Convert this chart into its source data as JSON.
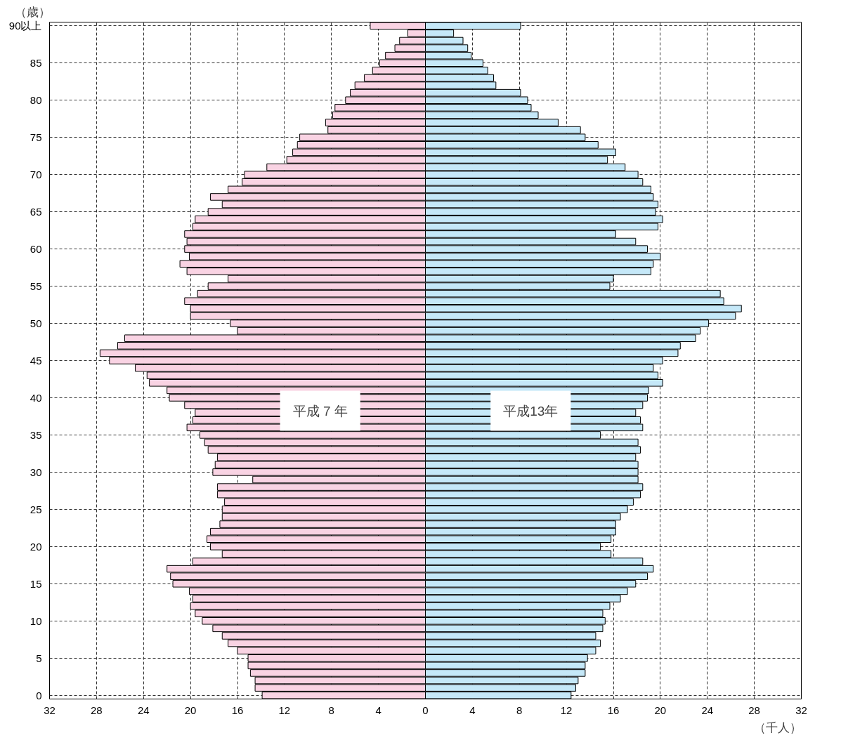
{
  "chart_data": {
    "type": "bar",
    "orientation": "horizontal",
    "ylabel": "（歳）",
    "xlabel": "（千人）",
    "categories": [
      "90以上",
      null,
      null,
      null,
      null,
      "85",
      null,
      null,
      null,
      null,
      "80",
      null,
      null,
      null,
      null,
      "75",
      null,
      null,
      null,
      null,
      "70",
      null,
      null,
      null,
      null,
      "65",
      null,
      null,
      null,
      null,
      "60",
      null,
      null,
      null,
      null,
      "55",
      null,
      null,
      null,
      null,
      "50",
      null,
      null,
      null,
      null,
      "45",
      null,
      null,
      null,
      null,
      "40",
      null,
      null,
      null,
      null,
      "35",
      null,
      null,
      null,
      null,
      "30",
      null,
      null,
      null,
      null,
      "25",
      null,
      null,
      null,
      null,
      "20",
      null,
      null,
      null,
      null,
      "15",
      null,
      null,
      null,
      null,
      "10",
      null,
      null,
      null,
      null,
      "5",
      null,
      null,
      null,
      null,
      "0"
    ],
    "series": [
      {
        "name": "平成 7 年",
        "color": "#f9d3e3",
        "values": [
          -4.7,
          -1.5,
          -2.2,
          -2.6,
          -3.4,
          -3.9,
          -4.5,
          -5.2,
          -6.0,
          -6.4,
          -6.8,
          -7.7,
          -7.9,
          -8.5,
          -8.3,
          -10.7,
          -10.9,
          -11.3,
          -11.8,
          -13.5,
          -15.4,
          -15.6,
          -16.8,
          -18.3,
          -17.3,
          -18.5,
          -19.6,
          -19.8,
          -20.5,
          -20.3,
          -20.5,
          -20.1,
          -20.9,
          -20.3,
          -16.8,
          -18.5,
          -19.4,
          -20.5,
          -20.0,
          -20.0,
          -16.6,
          -16.0,
          -25.6,
          -26.2,
          -27.7,
          -26.9,
          -24.7,
          -23.7,
          -23.5,
          -22.0,
          -21.8,
          -20.5,
          -19.6,
          -19.8,
          -20.3,
          -19.2,
          -18.8,
          -18.5,
          -17.7,
          -17.9,
          -18.1,
          -14.7,
          -17.7,
          -17.7,
          -17.1,
          -17.3,
          -17.3,
          -17.5,
          -18.3,
          -18.6,
          -18.3,
          -17.3,
          -19.8,
          -22.0,
          -21.7,
          -21.5,
          -20.1,
          -19.8,
          -20.0,
          -19.6,
          -19.0,
          -18.1,
          -17.3,
          -16.8,
          -16.0,
          -15.1,
          -15.1,
          -14.9,
          -14.5,
          -14.5,
          -13.9
        ]
      },
      {
        "name": "平成13年",
        "color": "#c5e8f8",
        "values": [
          8.1,
          2.4,
          3.2,
          3.6,
          3.9,
          4.9,
          5.3,
          5.8,
          6.0,
          8.1,
          8.7,
          9.0,
          9.6,
          11.3,
          13.2,
          13.6,
          14.7,
          16.2,
          15.5,
          17.0,
          18.1,
          18.5,
          19.2,
          19.4,
          19.8,
          19.6,
          20.2,
          19.8,
          16.2,
          17.9,
          18.9,
          20.0,
          19.4,
          19.2,
          16.0,
          15.7,
          25.1,
          25.4,
          26.9,
          26.4,
          24.1,
          23.4,
          23.0,
          21.7,
          21.5,
          20.2,
          19.4,
          19.8,
          20.2,
          19.0,
          18.9,
          18.5,
          17.9,
          18.3,
          18.5,
          14.9,
          18.1,
          18.3,
          17.9,
          18.1,
          18.1,
          18.1,
          18.5,
          18.3,
          17.7,
          17.2,
          16.6,
          16.2,
          16.2,
          15.8,
          14.9,
          15.8,
          18.5,
          19.4,
          18.9,
          17.9,
          17.2,
          16.6,
          15.7,
          15.1,
          15.3,
          15.1,
          14.5,
          14.9,
          14.5,
          13.8,
          13.6,
          13.6,
          13.0,
          12.8,
          12.4
        ]
      }
    ],
    "xlim": [
      -32,
      32
    ],
    "xticks": [
      {
        "value": -32,
        "label": "32"
      },
      {
        "value": -28,
        "label": "28"
      },
      {
        "value": -24,
        "label": "24"
      },
      {
        "value": -20,
        "label": "20"
      },
      {
        "value": -16,
        "label": "16"
      },
      {
        "value": -12,
        "label": "12"
      },
      {
        "value": -8,
        "label": "8"
      },
      {
        "value": -4,
        "label": "4"
      },
      0,
      4,
      8,
      12,
      16,
      20,
      24,
      28,
      32
    ],
    "grid": true,
    "stacked": true
  }
}
